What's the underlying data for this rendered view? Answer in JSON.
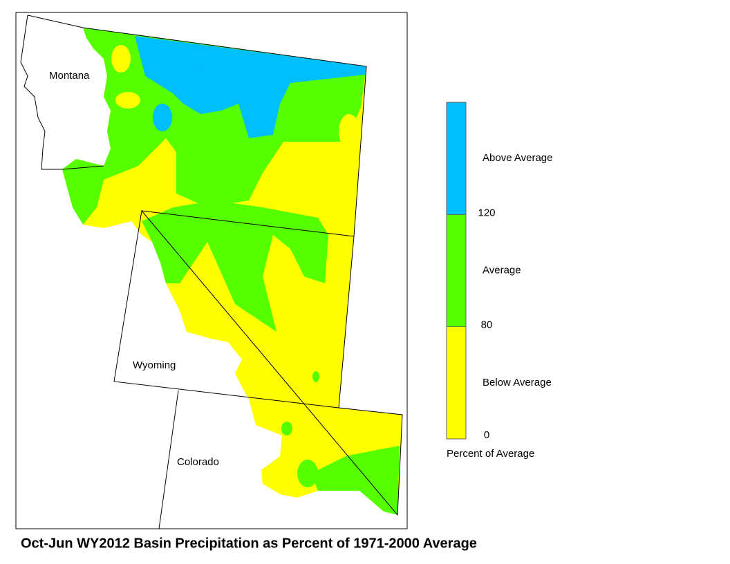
{
  "title": "Oct-Jun WY2012 Basin Precipitation as Percent of 1971-2000 Average",
  "states": [
    "Montana",
    "Wyoming",
    "Colorado"
  ],
  "legend": {
    "ticks": [
      0,
      80,
      120
    ],
    "classes": [
      {
        "label": "Below Average",
        "color": "#ffff00"
      },
      {
        "label": "Average",
        "color": "#55ff00"
      },
      {
        "label": "Above Average",
        "color": "#00bfff"
      }
    ],
    "caption": "Percent of Average"
  }
}
